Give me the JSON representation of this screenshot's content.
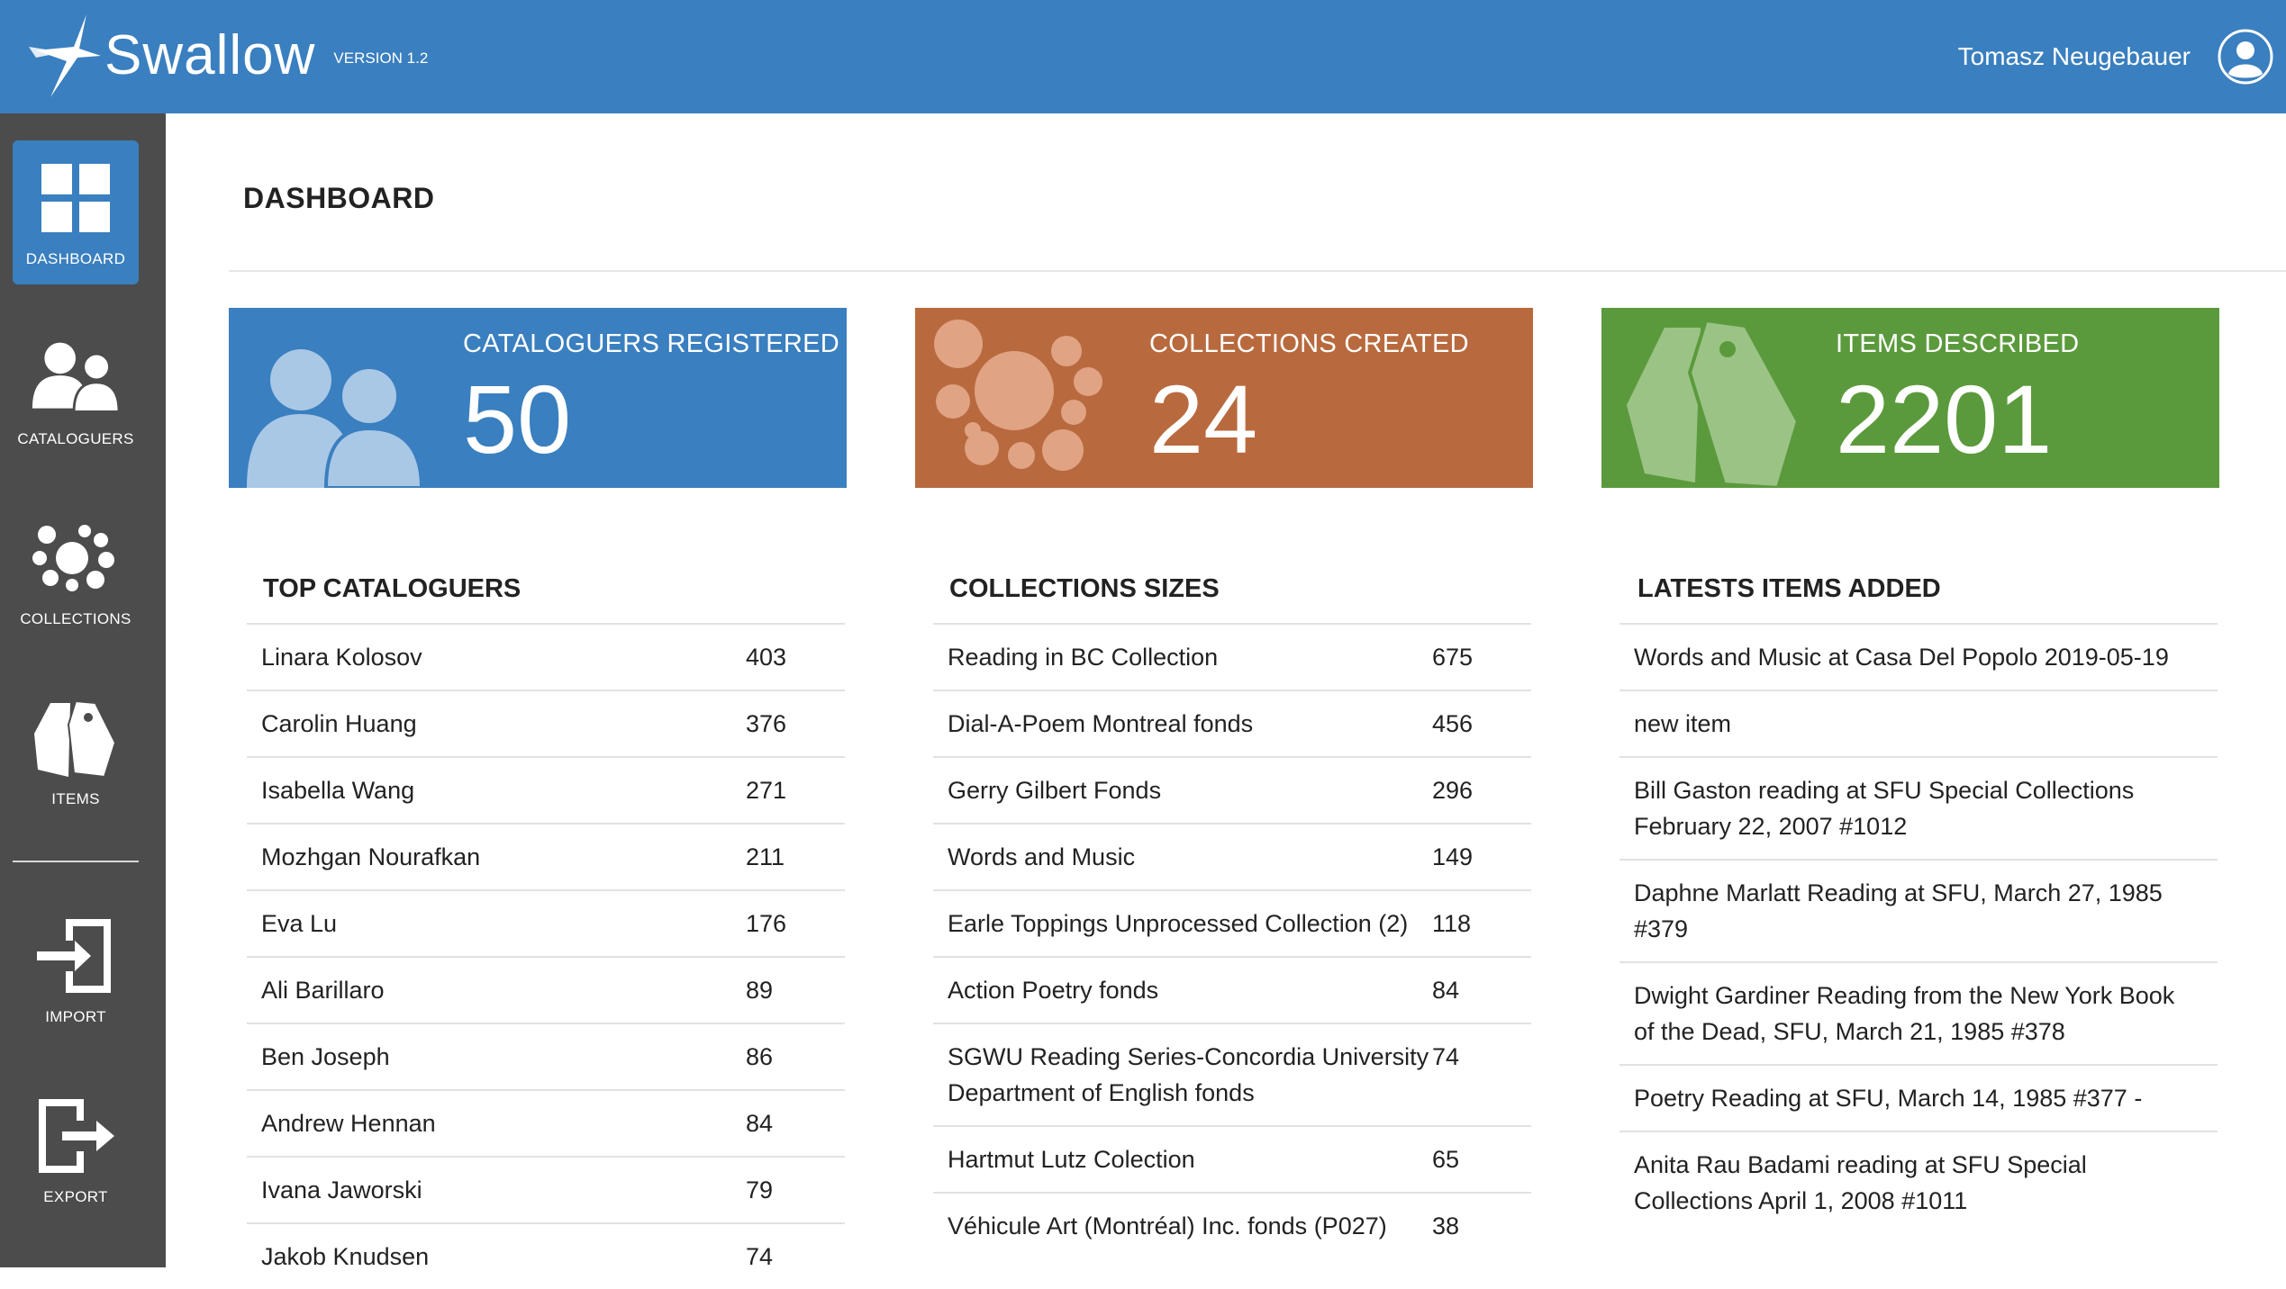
{
  "app": {
    "name": "Swallow",
    "version": "VERSION 1.2",
    "user_name": "Tomasz Neugebauer"
  },
  "sidebar": {
    "items": [
      {
        "label": "DASHBOARD",
        "icon": "grid-icon",
        "active": true
      },
      {
        "label": "CATALOGUERS",
        "icon": "users-icon"
      },
      {
        "label": "COLLECTIONS",
        "icon": "bubbles-icon"
      },
      {
        "label": "ITEMS",
        "icon": "tags-icon"
      },
      {
        "label": "IMPORT",
        "icon": "import-icon"
      },
      {
        "label": "EXPORT",
        "icon": "export-icon"
      }
    ]
  },
  "page": {
    "title": "DASHBOARD"
  },
  "stats": [
    {
      "label": "CATALOGUERS REGISTERED",
      "value": "50",
      "color": "#3a7fbf"
    },
    {
      "label": "COLLECTIONS CREATED",
      "value": "24",
      "color": "#b86a3e"
    },
    {
      "label": "ITEMS DESCRIBED",
      "value": "2201",
      "color": "#5b9a3c"
    }
  ],
  "top_cataloguers": {
    "title": "TOP CATALOGUERS",
    "rows": [
      {
        "name": "Linara Kolosov",
        "count": "403"
      },
      {
        "name": "Carolin Huang",
        "count": "376"
      },
      {
        "name": "Isabella Wang",
        "count": "271"
      },
      {
        "name": "Mozhgan Nourafkan",
        "count": "211"
      },
      {
        "name": "Eva Lu",
        "count": "176"
      },
      {
        "name": "Ali Barillaro",
        "count": "89"
      },
      {
        "name": "Ben Joseph",
        "count": "86"
      },
      {
        "name": "Andrew Hennan",
        "count": "84"
      },
      {
        "name": "Ivana Jaworski",
        "count": "79"
      },
      {
        "name": "Jakob Knudsen",
        "count": "74"
      }
    ]
  },
  "collection_sizes": {
    "title": "COLLECTIONS SIZES",
    "rows": [
      {
        "name": "Reading in BC Collection",
        "count": "675"
      },
      {
        "name": "Dial-A-Poem Montreal fonds",
        "count": "456"
      },
      {
        "name": "Gerry Gilbert Fonds",
        "count": "296"
      },
      {
        "name": "Words and Music",
        "count": "149"
      },
      {
        "name": "Earle Toppings Unprocessed Collection (2)",
        "count": "118"
      },
      {
        "name": "Action Poetry fonds",
        "count": "84"
      },
      {
        "name": "SGWU Reading Series-Concordia University Department of English fonds",
        "count": "74"
      },
      {
        "name": "Hartmut Lutz Colection",
        "count": "65"
      },
      {
        "name": "Véhicule Art (Montréal) Inc. fonds (P027)",
        "count": "38"
      }
    ]
  },
  "latest_items": {
    "title": "LATESTS ITEMS ADDED",
    "rows": [
      {
        "name": "Words and Music at Casa Del Popolo 2019-05-19"
      },
      {
        "name": "new item"
      },
      {
        "name": "Bill Gaston reading at SFU Special Collections February 22, 2007 #1012"
      },
      {
        "name": "Daphne Marlatt Reading at SFU, March 27, 1985 #379"
      },
      {
        "name": "Dwight Gardiner Reading from the New York Book of the Dead, SFU, March 21, 1985 #378"
      },
      {
        "name": "Poetry Reading at SFU, March 14, 1985 #377 -"
      },
      {
        "name": "Anita Rau Badami reading at SFU Special Collections April 1, 2008 #1011"
      }
    ]
  }
}
